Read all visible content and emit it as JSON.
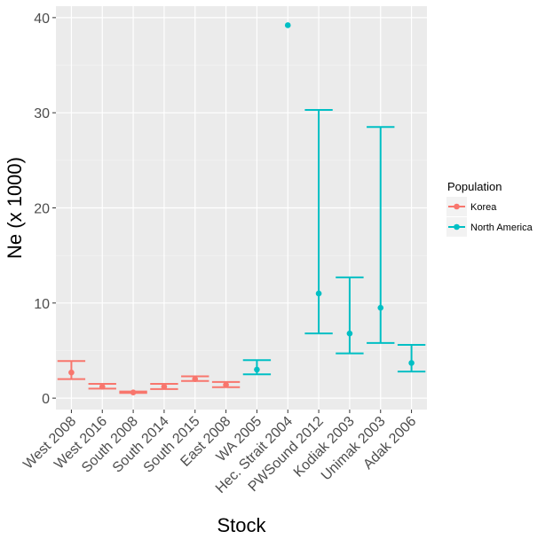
{
  "chart_data": {
    "type": "scatter",
    "xlabel": "Stock",
    "ylabel": "Ne (x 1000)",
    "ylim": [
      -1.2,
      41.2
    ],
    "yticks": [
      0,
      10,
      20,
      30,
      40
    ],
    "categories": [
      "West 2008",
      "West 2016",
      "South 2008",
      "South 2014",
      "South 2015",
      "East 2008",
      "WA 2005",
      "Hec. Strait 2004",
      "PWSound 2012",
      "Kodiak 2003",
      "Unimak 2003",
      "Adak 2006"
    ],
    "grid": true,
    "legend": {
      "title": "Population",
      "position": "right",
      "entries": [
        {
          "name": "Korea",
          "color": "#F8766D"
        },
        {
          "name": "North America",
          "color": "#00BFC4"
        }
      ]
    },
    "series": [
      {
        "name": "Korea",
        "color": "#F8766D",
        "points": [
          {
            "x": "West 2008",
            "y": 2.7,
            "low": 2.0,
            "high": 3.9
          },
          {
            "x": "West 2016",
            "y": 1.2,
            "low": 1.0,
            "high": 1.5
          },
          {
            "x": "South 2008",
            "y": 0.6,
            "low": 0.55,
            "high": 0.7
          },
          {
            "x": "South 2014",
            "y": 1.2,
            "low": 0.95,
            "high": 1.5
          },
          {
            "x": "South 2015",
            "y": 2.0,
            "low": 1.8,
            "high": 2.3
          },
          {
            "x": "East 2008",
            "y": 1.4,
            "low": 1.15,
            "high": 1.7
          }
        ]
      },
      {
        "name": "North America",
        "color": "#00BFC4",
        "points": [
          {
            "x": "WA 2005",
            "y": 3.0,
            "low": 2.5,
            "high": 4.0
          },
          {
            "x": "Hec. Strait 2004",
            "y": 39.2,
            "low": null,
            "high": null
          },
          {
            "x": "PWSound 2012",
            "y": 11.0,
            "low": 6.8,
            "high": 30.3
          },
          {
            "x": "Kodiak 2003",
            "y": 6.8,
            "low": 4.7,
            "high": 12.7
          },
          {
            "x": "Unimak 2003",
            "y": 9.5,
            "low": 5.8,
            "high": 28.5
          },
          {
            "x": "Adak 2006",
            "y": 3.7,
            "low": 2.8,
            "high": 5.6
          }
        ]
      }
    ]
  }
}
